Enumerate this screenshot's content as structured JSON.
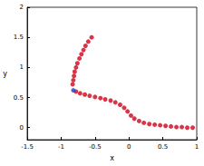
{
  "chart_data": {
    "type": "scatter",
    "xlabel": "x",
    "ylabel": "y",
    "xlim": [
      -1.5,
      1
    ],
    "xticks": [
      -1.5,
      -1,
      -0.5,
      0,
      0.5,
      1
    ],
    "ylim": [
      -0.2,
      2
    ],
    "yticks": [
      0,
      0.5,
      1,
      1.5,
      2
    ],
    "grid": false,
    "marker": "circle",
    "series": [
      {
        "color": "#d0021b",
        "x": [
          -0.55,
          -0.6,
          -0.64,
          -0.67,
          -0.7,
          -0.73,
          -0.76,
          -0.78,
          -0.8,
          -0.81,
          -0.82,
          -0.83,
          -0.78,
          -0.72,
          -0.65,
          -0.58,
          -0.5,
          -0.42,
          -0.35,
          -0.27,
          -0.2,
          -0.13,
          -0.07,
          -0.02,
          0.03,
          0.08,
          0.15,
          0.22,
          0.3,
          0.38,
          0.46,
          0.54,
          0.62,
          0.7,
          0.78,
          0.86,
          0.94
        ],
        "y": [
          1.5,
          1.43,
          1.36,
          1.29,
          1.22,
          1.15,
          1.07,
          1.0,
          0.93,
          0.86,
          0.79,
          0.72,
          0.6,
          0.57,
          0.55,
          0.53,
          0.51,
          0.49,
          0.47,
          0.45,
          0.42,
          0.38,
          0.33,
          0.27,
          0.2,
          0.15,
          0.11,
          0.08,
          0.06,
          0.05,
          0.04,
          0.03,
          0.02,
          0.01,
          0.01,
          0.0,
          0.0
        ]
      },
      {
        "color": "#1f3fbf",
        "x": [
          -0.82
        ],
        "y": [
          0.62
        ]
      }
    ]
  }
}
